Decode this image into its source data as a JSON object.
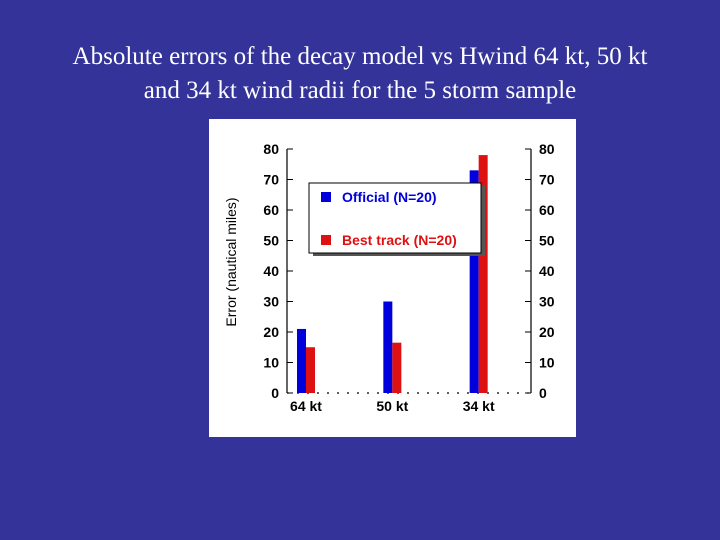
{
  "slide": {
    "title_line1": "Absolute errors of the decay model vs Hwind 64 kt, 50 kt",
    "title_line2": "and 34 kt wind radii for the 5 storm sample"
  },
  "chart_data": {
    "type": "bar",
    "title": "",
    "xlabel": "",
    "ylabel": "Error (nautical miles)",
    "ylim": [
      0,
      80
    ],
    "yticks": [
      0,
      10,
      20,
      30,
      40,
      50,
      60,
      70,
      80
    ],
    "categories": [
      "64 kt",
      "50 kt",
      "34 kt"
    ],
    "series": [
      {
        "name": "Official (N=20)",
        "color": "#0000dd",
        "values": [
          21,
          30,
          73
        ]
      },
      {
        "name": "Best track (N=20)",
        "color": "#dd1111",
        "values": [
          15,
          16.5,
          78
        ]
      }
    ],
    "legend_position": "top-center",
    "grid": false
  }
}
